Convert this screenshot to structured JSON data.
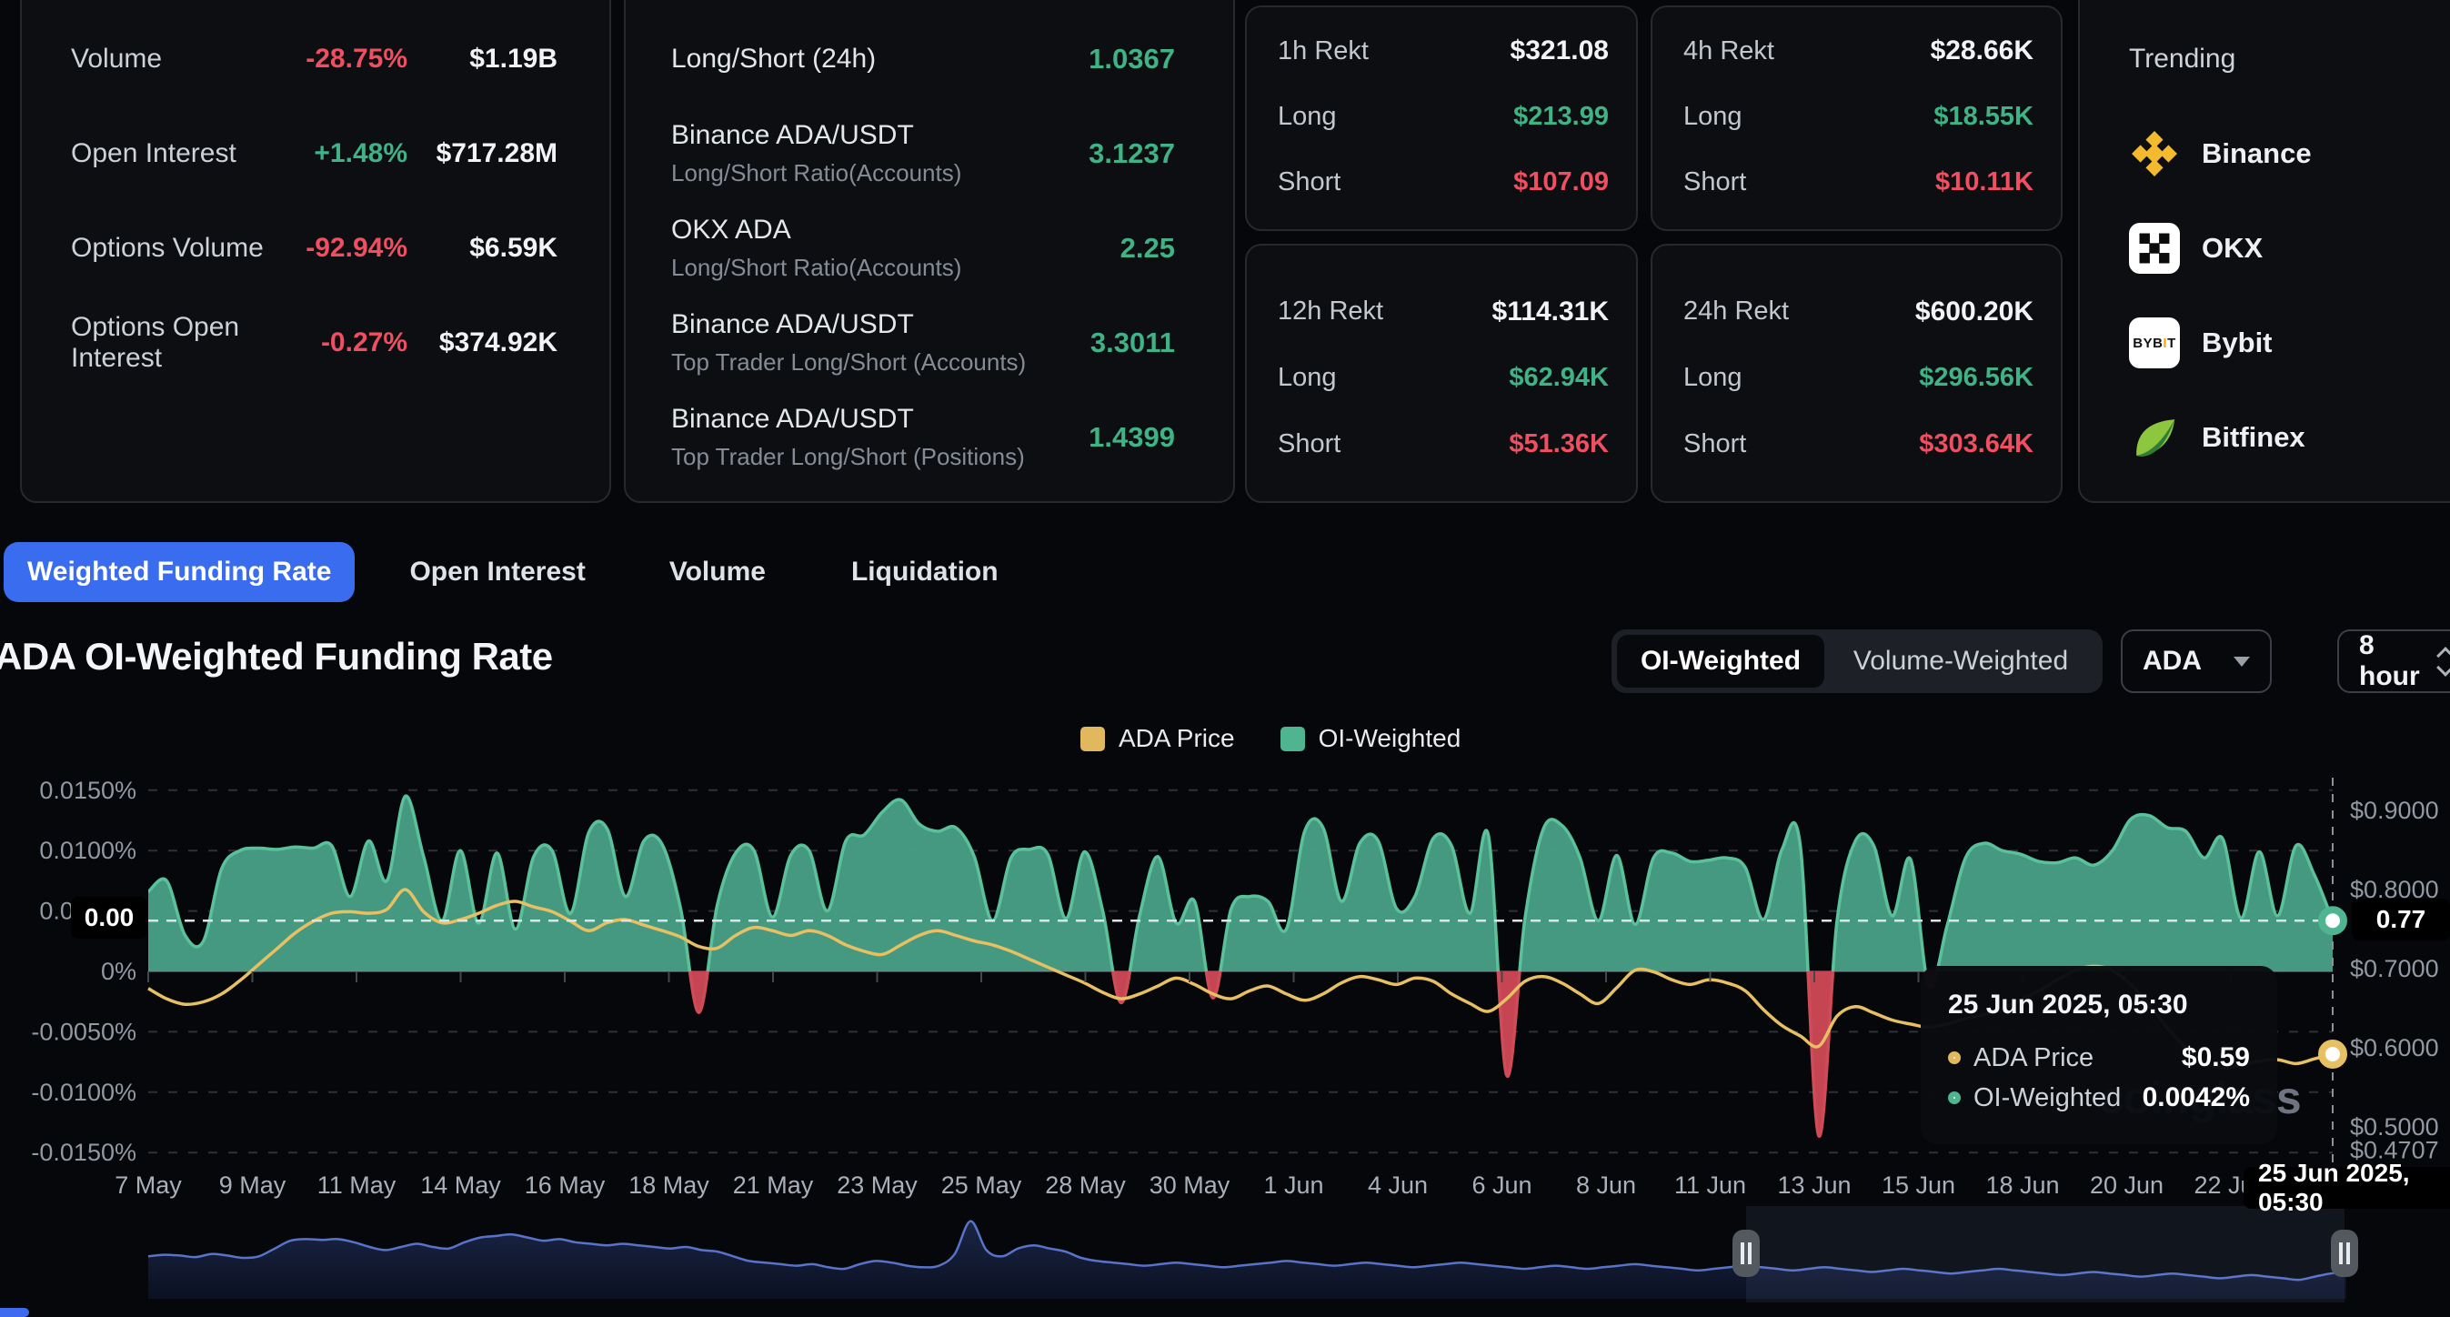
{
  "stats_panel": {
    "rows": [
      {
        "label": "Volume",
        "change": "-28.75%",
        "direction": "down",
        "value": "$1.19B"
      },
      {
        "label": "Open Interest",
        "change": "+1.48%",
        "direction": "up",
        "value": "$717.28M"
      },
      {
        "label": "Options Volume",
        "change": "-92.94%",
        "direction": "down",
        "value": "$6.59K"
      },
      {
        "label": "Options Open Interest",
        "change": "-0.27%",
        "direction": "down",
        "value": "$374.92K"
      }
    ]
  },
  "ratio_panel": {
    "rows": [
      {
        "title": "Long/Short (24h)",
        "subtitle": "",
        "value": "1.0367"
      },
      {
        "title": "Binance ADA/USDT",
        "subtitle": "Long/Short Ratio(Accounts)",
        "value": "3.1237"
      },
      {
        "title": "OKX ADA",
        "subtitle": "Long/Short Ratio(Accounts)",
        "value": "2.25"
      },
      {
        "title": "Binance ADA/USDT",
        "subtitle": "Top Trader Long/Short (Accounts)",
        "value": "3.3011"
      },
      {
        "title": "Binance ADA/USDT",
        "subtitle": "Top Trader Long/Short (Positions)",
        "value": "1.4399"
      }
    ]
  },
  "rekt_panels": {
    "long_key": "Long",
    "short_key": "Short",
    "cards": [
      {
        "title": "1h Rekt",
        "total": "$321.08",
        "long": "$213.99",
        "short": "$107.09"
      },
      {
        "title": "4h Rekt",
        "total": "$28.66K",
        "long": "$18.55K",
        "short": "$10.11K"
      },
      {
        "title": "12h Rekt",
        "total": "$114.31K",
        "long": "$62.94K",
        "short": "$51.36K"
      },
      {
        "title": "24h Rekt",
        "total": "$600.20K",
        "long": "$296.56K",
        "short": "$303.64K"
      }
    ]
  },
  "trending": {
    "title": "Trending",
    "items": [
      {
        "name": "Binance",
        "icon": "binance-icon"
      },
      {
        "name": "OKX",
        "icon": "okx-icon"
      },
      {
        "name": "Bybit",
        "icon": "bybit-icon"
      },
      {
        "name": "Bitfinex",
        "icon": "bitfinex-icon"
      }
    ]
  },
  "tabs": [
    {
      "label": "Weighted Funding Rate",
      "active": true
    },
    {
      "label": "Open Interest",
      "active": false
    },
    {
      "label": "Volume",
      "active": false
    },
    {
      "label": "Liquidation",
      "active": false
    }
  ],
  "chart_header": {
    "title": "ADA OI-Weighted Funding Rate",
    "toggle_options": [
      "OI-Weighted",
      "Volume-Weighted"
    ],
    "active_toggle": "OI-Weighted",
    "symbol": "ADA",
    "interval": "8 hour"
  },
  "legend": [
    {
      "label": "ADA Price",
      "color": "#e2b85e"
    },
    {
      "label": "OI-Weighted",
      "color": "#4fb591"
    }
  ],
  "tooltip": {
    "date": "25 Jun 2025, 05:30",
    "rows": [
      {
        "label": "ADA Price",
        "value": "$0.59",
        "color": "#e2b85e"
      },
      {
        "label": "OI-Weighted",
        "value": "0.0042%",
        "color": "#4fb591"
      }
    ]
  },
  "crosshair": {
    "left_label": "0.00",
    "right_label": "0.77",
    "bottom_label": "25 Jun 2025, 05:30"
  },
  "watermark": "coinglass",
  "chart_data": {
    "type": "area",
    "title": "ADA OI-Weighted Funding Rate",
    "x_ticks": [
      "7 May",
      "9 May",
      "11 May",
      "14 May",
      "16 May",
      "18 May",
      "21 May",
      "23 May",
      "25 May",
      "28 May",
      "30 May",
      "1 Jun",
      "4 Jun",
      "6 Jun",
      "8 Jun",
      "11 Jun",
      "13 Jun",
      "15 Jun",
      "18 Jun",
      "20 Jun",
      "22 Jun"
    ],
    "left_axis": {
      "unit": "%",
      "ticks": [
        {
          "label": "0.0150%",
          "v": 0.015
        },
        {
          "label": "0.0100%",
          "v": 0.01
        },
        {
          "label": "0.0050%",
          "v": 0.005
        },
        {
          "label": "0%",
          "v": 0
        },
        {
          "label": "-0.0050%",
          "v": -0.005
        },
        {
          "label": "-0.0100%",
          "v": -0.01
        },
        {
          "label": "-0.0150%",
          "v": -0.015
        }
      ]
    },
    "right_axis": {
      "unit": "$",
      "ticks": [
        {
          "label": "$0.9000",
          "v": 0.9
        },
        {
          "label": "$0.8000",
          "v": 0.8
        },
        {
          "label": "$0.7000",
          "v": 0.7
        },
        {
          "label": "$0.6000",
          "v": 0.6
        },
        {
          "label": "$0.5000",
          "v": 0.5
        },
        {
          "label": "$0.4707",
          "v": 0.4707
        }
      ]
    },
    "series": [
      {
        "name": "OI-Weighted",
        "type": "area",
        "axis": "left",
        "color_positive": "#479e85",
        "color_negative": "#c64552",
        "line_positive": "#5ac19b",
        "line_negative": "#cf4b57",
        "values": [
          0.0066,
          0.0075,
          0.003,
          0.0025,
          0.0085,
          0.01,
          0.0102,
          0.0101,
          0.0103,
          0.0102,
          0.0104,
          0.0062,
          0.0108,
          0.0075,
          0.0145,
          0.0095,
          0.0042,
          0.01,
          0.004,
          0.0098,
          0.0035,
          0.0095,
          0.01,
          0.0048,
          0.0115,
          0.0118,
          0.0062,
          0.0108,
          0.0105,
          0.0052,
          -0.0034,
          0.0055,
          0.0098,
          0.01,
          0.0045,
          0.0096,
          0.01,
          0.005,
          0.0108,
          0.0113,
          0.0132,
          0.0142,
          0.0122,
          0.0116,
          0.0119,
          0.0095,
          0.0042,
          0.0094,
          0.0101,
          0.0097,
          0.0044,
          0.0099,
          0.005,
          -0.0026,
          0.0046,
          0.0095,
          0.004,
          0.0058,
          -0.0022,
          0.0052,
          0.0062,
          0.0058,
          0.0035,
          0.0116,
          0.0119,
          0.0058,
          0.0106,
          0.0108,
          0.0052,
          0.0062,
          0.011,
          0.0104,
          0.0048,
          0.0113,
          -0.0086,
          0.0044,
          0.0118,
          0.0121,
          0.0094,
          0.0042,
          0.0096,
          0.0039,
          0.0094,
          0.0098,
          0.0091,
          0.0092,
          0.0094,
          0.0086,
          0.0043,
          0.0101,
          0.0104,
          -0.0136,
          0.0042,
          0.0108,
          0.0104,
          0.0046,
          0.0093,
          -0.0012,
          0.0038,
          0.0094,
          0.0106,
          0.01,
          0.0097,
          0.0091,
          0.009,
          0.0094,
          0.0088,
          0.01,
          0.0126,
          0.0129,
          0.0119,
          0.0116,
          0.0094,
          0.011,
          0.0044,
          0.0099,
          0.0046,
          0.0104,
          0.008,
          0.0042
        ]
      },
      {
        "name": "ADA Price",
        "type": "line",
        "axis": "right",
        "color": "#e7c063",
        "values": [
          0.675,
          0.662,
          0.655,
          0.658,
          0.668,
          0.685,
          0.705,
          0.725,
          0.745,
          0.76,
          0.77,
          0.772,
          0.77,
          0.775,
          0.8,
          0.772,
          0.758,
          0.762,
          0.77,
          0.78,
          0.785,
          0.778,
          0.772,
          0.76,
          0.748,
          0.758,
          0.762,
          0.755,
          0.748,
          0.74,
          0.728,
          0.726,
          0.742,
          0.752,
          0.748,
          0.742,
          0.748,
          0.742,
          0.73,
          0.722,
          0.718,
          0.73,
          0.742,
          0.748,
          0.742,
          0.735,
          0.73,
          0.722,
          0.712,
          0.702,
          0.692,
          0.682,
          0.67,
          0.662,
          0.668,
          0.678,
          0.688,
          0.68,
          0.668,
          0.662,
          0.672,
          0.678,
          0.668,
          0.66,
          0.668,
          0.682,
          0.69,
          0.686,
          0.68,
          0.688,
          0.684,
          0.668,
          0.656,
          0.646,
          0.662,
          0.684,
          0.69,
          0.682,
          0.668,
          0.656,
          0.676,
          0.698,
          0.696,
          0.686,
          0.68,
          0.686,
          0.682,
          0.672,
          0.648,
          0.628,
          0.615,
          0.602,
          0.64,
          0.652,
          0.644,
          0.635,
          0.63,
          0.626,
          0.63,
          0.637,
          0.642,
          0.65,
          0.66,
          0.672,
          0.686,
          0.698,
          0.703,
          0.698,
          0.68,
          0.654,
          0.625,
          0.6,
          0.582,
          0.574,
          0.578,
          0.583,
          0.585,
          0.58,
          0.586,
          0.592
        ]
      }
    ],
    "navigator": {
      "color": "#5873c9",
      "values": [
        0.52,
        0.54,
        0.53,
        0.51,
        0.55,
        0.53,
        0.5,
        0.52,
        0.62,
        0.72,
        0.74,
        0.73,
        0.74,
        0.7,
        0.64,
        0.6,
        0.64,
        0.68,
        0.64,
        0.62,
        0.7,
        0.76,
        0.78,
        0.8,
        0.76,
        0.72,
        0.74,
        0.7,
        0.68,
        0.66,
        0.68,
        0.66,
        0.64,
        0.62,
        0.64,
        0.6,
        0.58,
        0.52,
        0.46,
        0.44,
        0.42,
        0.4,
        0.42,
        0.38,
        0.36,
        0.42,
        0.46,
        0.44,
        0.4,
        0.38,
        0.4,
        0.55,
        0.97,
        0.6,
        0.52,
        0.62,
        0.66,
        0.62,
        0.58,
        0.5,
        0.46,
        0.44,
        0.42,
        0.4,
        0.42,
        0.44,
        0.42,
        0.4,
        0.38,
        0.4,
        0.42,
        0.44,
        0.46,
        0.44,
        0.42,
        0.4,
        0.42,
        0.44,
        0.42,
        0.4,
        0.38,
        0.4,
        0.42,
        0.44,
        0.42,
        0.4,
        0.38,
        0.36,
        0.38,
        0.4,
        0.38,
        0.36,
        0.38,
        0.4,
        0.42,
        0.4,
        0.38,
        0.36,
        0.34,
        0.36,
        0.38,
        0.4,
        0.38,
        0.36,
        0.34,
        0.36,
        0.38,
        0.36,
        0.34,
        0.32,
        0.34,
        0.36,
        0.34,
        0.32,
        0.3,
        0.32,
        0.34,
        0.36,
        0.34,
        0.32,
        0.3,
        0.28,
        0.3,
        0.32,
        0.3,
        0.28,
        0.26,
        0.28,
        0.3,
        0.28,
        0.26,
        0.24,
        0.26,
        0.28,
        0.26,
        0.24,
        0.22,
        0.26,
        0.3,
        0.32
      ]
    },
    "hover_point": {
      "date": "25 Jun 2025, 05:30",
      "price": 0.592,
      "funding_pct": 0.0042
    }
  }
}
